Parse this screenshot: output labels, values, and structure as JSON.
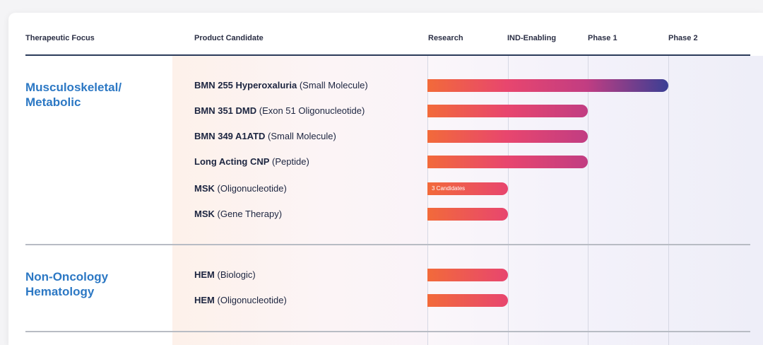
{
  "columns": {
    "focus": "Therapeutic Focus",
    "product": "Product Candidate"
  },
  "chart_data": {
    "type": "bar",
    "orientation": "horizontal",
    "phases": [
      "Research",
      "IND-Enabling",
      "Phase 1",
      "Phase 2"
    ],
    "groups": [
      {
        "focus_line1": "Musculoskeletal/",
        "focus_line2": "Metabolic",
        "candidates": [
          {
            "name": "BMN 255 Hyperoxaluria",
            "modality": "(Small Molecule)",
            "progress": 3.0,
            "label": ""
          },
          {
            "name": "BMN 351 DMD",
            "modality": "(Exon 51 Oligonucleotide)",
            "progress": 2.0,
            "label": ""
          },
          {
            "name": "BMN 349 A1ATD",
            "modality": "(Small Molecule)",
            "progress": 2.0,
            "label": ""
          },
          {
            "name": "Long Acting CNP",
            "modality": "(Peptide)",
            "progress": 2.0,
            "label": ""
          },
          {
            "name": "MSK",
            "modality": "(Oligonucleotide)",
            "progress": 1.0,
            "label": "3 Candidates"
          },
          {
            "name": "MSK",
            "modality": "(Gene Therapy)",
            "progress": 1.0,
            "label": ""
          }
        ]
      },
      {
        "focus_line1": "Non-Oncology",
        "focus_line2": "Hematology",
        "candidates": [
          {
            "name": "HEM",
            "modality": "(Biologic)",
            "progress": 1.0,
            "label": ""
          },
          {
            "name": "HEM",
            "modality": "(Oligonucleotide)",
            "progress": 1.0,
            "label": ""
          }
        ]
      }
    ],
    "colors": {
      "bar_start": "#f26a3a",
      "bar_mid": "#e8466e",
      "bar_late": "#c23d82",
      "bar_end": "#3b3f94",
      "focus_text": "#2c78c4"
    }
  }
}
